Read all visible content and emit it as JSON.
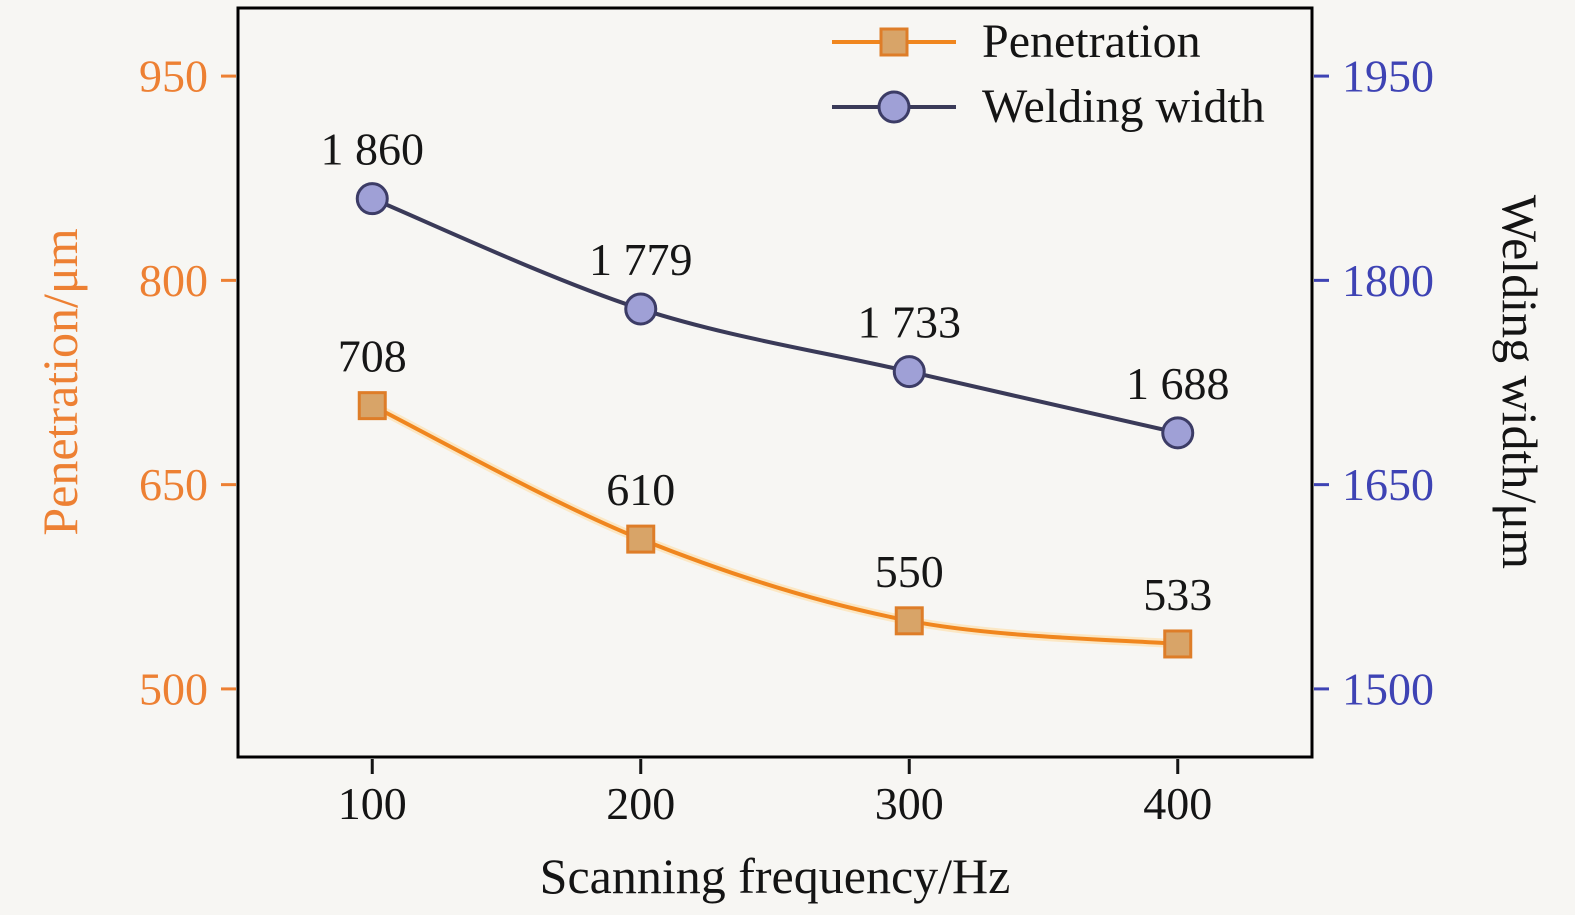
{
  "figure": {
    "background": "#f7f6f3",
    "frame_color": "#000000"
  },
  "chart_data": {
    "type": "line",
    "title": "",
    "xlabel": "Scanning frequency/Hz",
    "x": [
      100,
      200,
      300,
      400
    ],
    "x_tick_labels": [
      "100",
      "200",
      "300",
      "400"
    ],
    "xlim": [
      50,
      450
    ],
    "grid": false,
    "legend_position": "top-right-inside",
    "legend_items": [
      "Penetration",
      "Welding width"
    ],
    "left_axis": {
      "title": "Penetration/μm",
      "tick_labels": [
        "500",
        "650",
        "800",
        "950"
      ],
      "tick_values": [
        500,
        650,
        800,
        950
      ],
      "lim": [
        450,
        1000
      ],
      "color": "#ed8033"
    },
    "right_axis": {
      "title": "Welding width/μm",
      "tick_labels": [
        "1500",
        "1650",
        "1800",
        "1950"
      ],
      "tick_values": [
        1500,
        1650,
        1800,
        1950
      ],
      "lim": [
        1450,
        2000
      ],
      "color": "#3e43b4",
      "title_color": "#141414"
    },
    "series": [
      {
        "name": "Penetration",
        "axis": "left",
        "values": [
          708,
          610,
          550,
          533
        ],
        "point_labels": [
          "708",
          "610",
          "550",
          "533"
        ],
        "line_color": "#f0861e",
        "halo_color": "#fbe7c4",
        "marker": "square",
        "marker_fill": "#d8a468",
        "marker_stroke": "#de7d28"
      },
      {
        "name": "Welding width",
        "axis": "right",
        "values": [
          1860,
          1779,
          1733,
          1688
        ],
        "point_labels": [
          "1 860",
          "1 779",
          "1 733",
          "1 688"
        ],
        "line_color": "#3a3a58",
        "halo_color": "",
        "marker": "circle",
        "marker_fill": "#9fa0d6",
        "marker_stroke": "#3c3c66"
      }
    ]
  }
}
